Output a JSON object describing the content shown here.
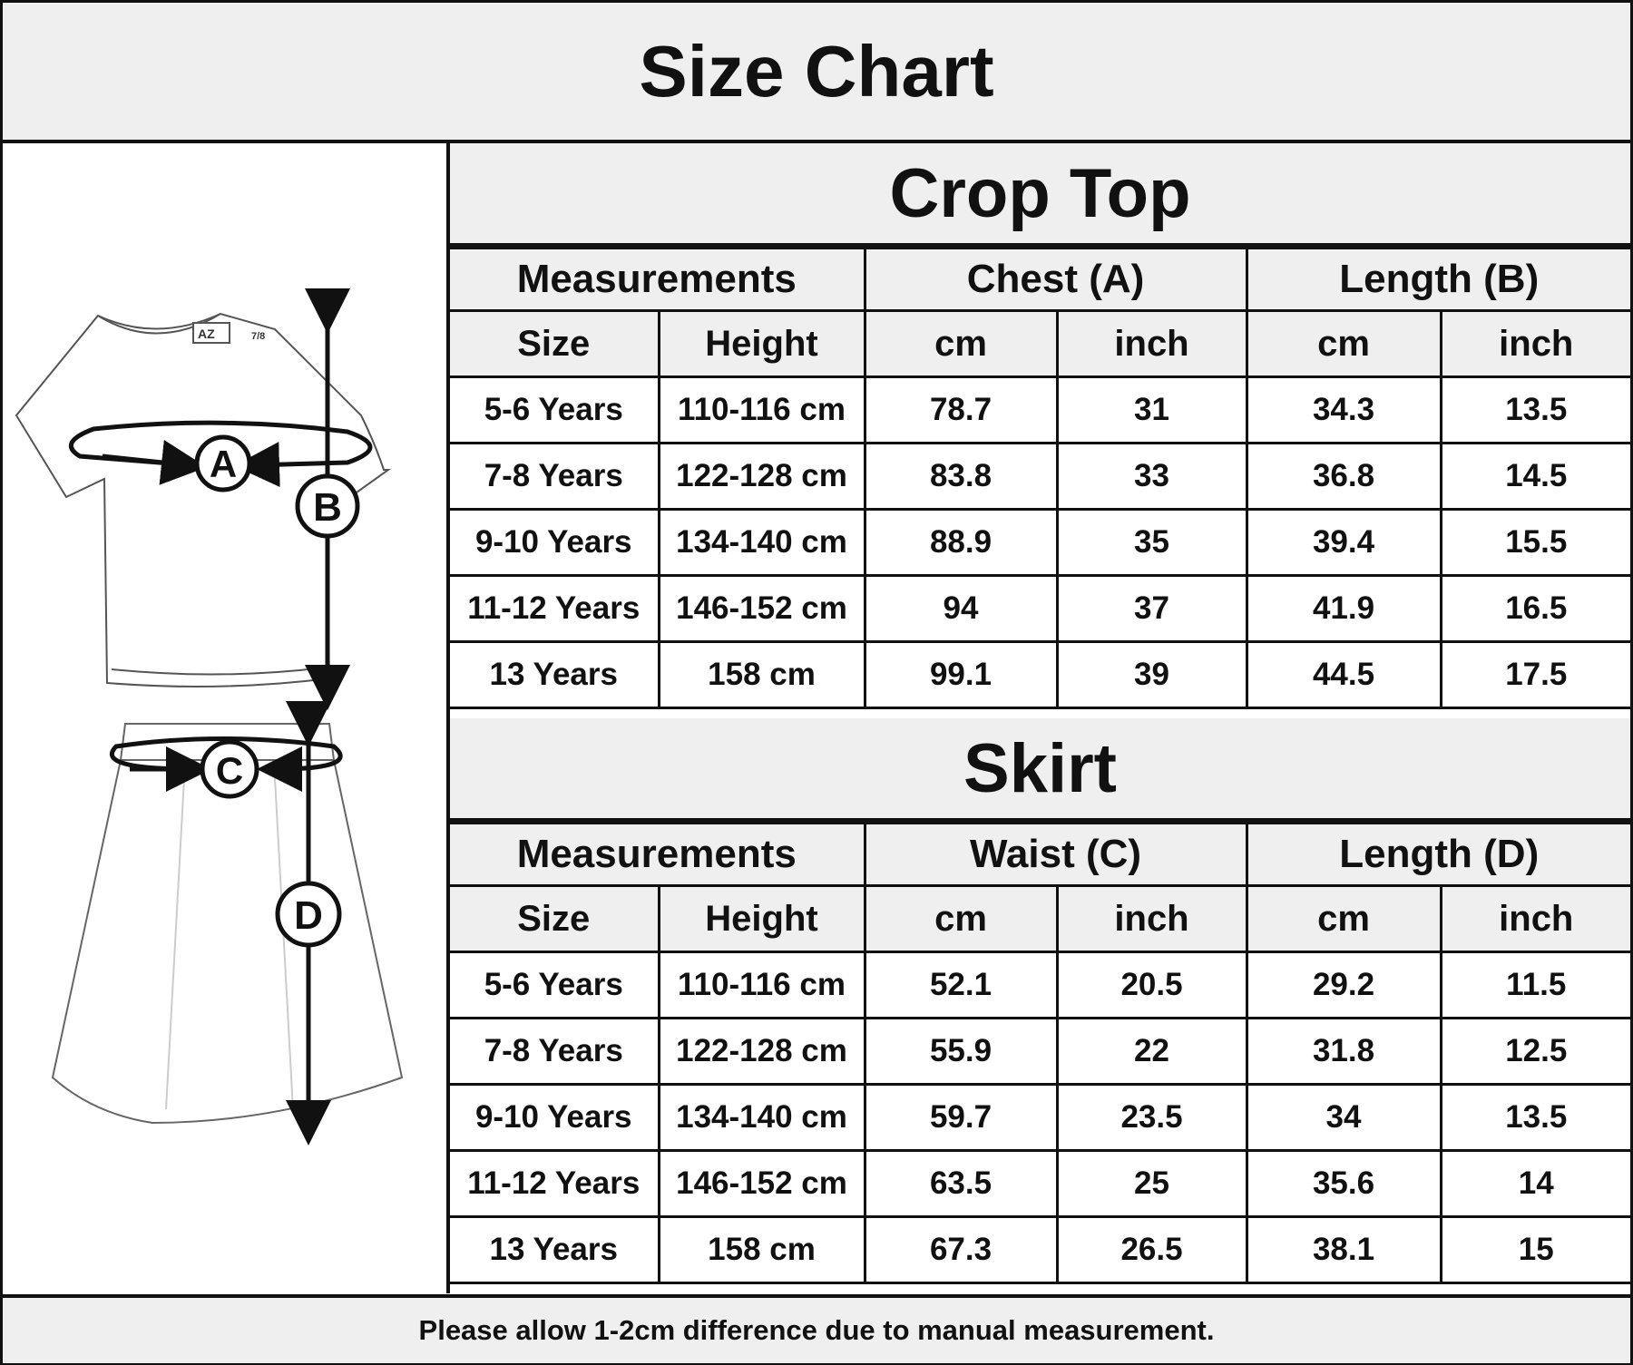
{
  "title": "Size Chart",
  "left_panel": {
    "markers": [
      "A",
      "B",
      "C",
      "D"
    ],
    "brand_label": "AZ",
    "tag_label": "7/8"
  },
  "crop_top": {
    "title": "Crop Top",
    "header_groups": [
      "Measurements",
      "Chest (A)",
      "Length (B)"
    ],
    "columns": [
      "Size",
      "Height",
      "cm",
      "inch",
      "cm",
      "inch"
    ],
    "rows": [
      [
        "5-6 Years",
        "110-116 cm",
        "78.7",
        "31",
        "34.3",
        "13.5"
      ],
      [
        "7-8 Years",
        "122-128 cm",
        "83.8",
        "33",
        "36.8",
        "14.5"
      ],
      [
        "9-10 Years",
        "134-140 cm",
        "88.9",
        "35",
        "39.4",
        "15.5"
      ],
      [
        "11-12 Years",
        "146-152 cm",
        "94",
        "37",
        "41.9",
        "16.5"
      ],
      [
        "13 Years",
        "158 cm",
        "99.1",
        "39",
        "44.5",
        "17.5"
      ]
    ]
  },
  "skirt": {
    "title": "Skirt",
    "header_groups": [
      "Measurements",
      "Waist (C)",
      "Length (D)"
    ],
    "columns": [
      "Size",
      "Height",
      "cm",
      "inch",
      "cm",
      "inch"
    ],
    "rows": [
      [
        "5-6 Years",
        "110-116 cm",
        "52.1",
        "20.5",
        "29.2",
        "11.5"
      ],
      [
        "7-8 Years",
        "122-128 cm",
        "55.9",
        "22",
        "31.8",
        "12.5"
      ],
      [
        "9-10 Years",
        "134-140 cm",
        "59.7",
        "23.5",
        "34",
        "13.5"
      ],
      [
        "11-12 Years",
        "146-152 cm",
        "63.5",
        "25",
        "35.6",
        "14"
      ],
      [
        "13 Years",
        "158 cm",
        "67.3",
        "26.5",
        "38.1",
        "15"
      ]
    ]
  },
  "footer": "Please allow 1-2cm difference due to manual measurement."
}
